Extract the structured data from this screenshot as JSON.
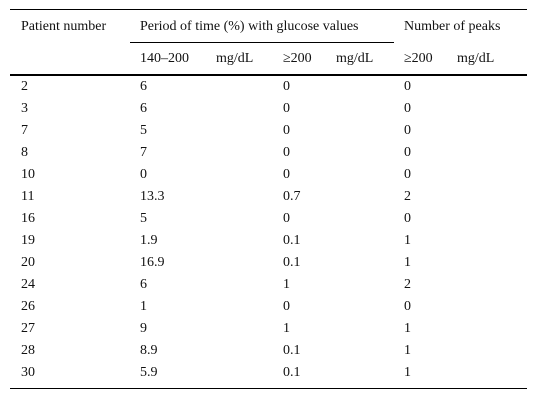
{
  "table": {
    "headers": {
      "patient_number": "Patient number",
      "period_group": "Period of time (%) with glucose values",
      "peaks_group": "Number of peaks",
      "sub_140_200_range": "140–200",
      "sub_140_200_unit": "mg/dL",
      "sub_ge200_value": "≥200",
      "sub_ge200_unit": "mg/dL",
      "sub_peaks_value": "≥200",
      "sub_peaks_unit": "mg/dL"
    },
    "rows": [
      {
        "patient": "2",
        "p140_200": "6",
        "pge200": "0",
        "peaks": "0"
      },
      {
        "patient": "3",
        "p140_200": "6",
        "pge200": "0",
        "peaks": "0"
      },
      {
        "patient": "7",
        "p140_200": "5",
        "pge200": "0",
        "peaks": "0"
      },
      {
        "patient": "8",
        "p140_200": "7",
        "pge200": "0",
        "peaks": "0"
      },
      {
        "patient": "10",
        "p140_200": "0",
        "pge200": "0",
        "peaks": "0"
      },
      {
        "patient": "11",
        "p140_200": "13.3",
        "pge200": "0.7",
        "peaks": "2"
      },
      {
        "patient": "16",
        "p140_200": "5",
        "pge200": "0",
        "peaks": "0"
      },
      {
        "patient": "19",
        "p140_200": "1.9",
        "pge200": "0.1",
        "peaks": "1"
      },
      {
        "patient": "20",
        "p140_200": "16.9",
        "pge200": "0.1",
        "peaks": "1"
      },
      {
        "patient": "24",
        "p140_200": "6",
        "pge200": "1",
        "peaks": "2"
      },
      {
        "patient": "26",
        "p140_200": "1",
        "pge200": "0",
        "peaks": "0"
      },
      {
        "patient": "27",
        "p140_200": "9",
        "pge200": "1",
        "peaks": "1"
      },
      {
        "patient": "28",
        "p140_200": "8.9",
        "pge200": "0.1",
        "peaks": "1"
      },
      {
        "patient": "30",
        "p140_200": "5.9",
        "pge200": "0.1",
        "peaks": "1"
      }
    ]
  }
}
